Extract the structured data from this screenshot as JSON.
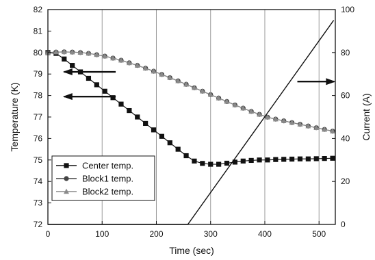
{
  "chart_data": {
    "type": "line",
    "xlabel": "Time (sec)",
    "ylabel": "Temperature (K)",
    "y2label": "Current (A)",
    "xlim": [
      0,
      530
    ],
    "ylim": [
      72,
      82
    ],
    "y2lim": [
      0,
      100
    ],
    "xticks": [
      0,
      100,
      200,
      300,
      400,
      500
    ],
    "yticks": [
      72,
      73,
      74,
      75,
      76,
      77,
      78,
      79,
      80,
      81,
      82
    ],
    "y2ticks": [
      0,
      20,
      40,
      60,
      80,
      100
    ],
    "grid_x": true,
    "grid_y": false,
    "legend_position": "bottom-left",
    "series": [
      {
        "name": "Center temp.",
        "marker": "square",
        "color": "#111111",
        "axis": "left",
        "x": [
          0,
          15,
          30,
          45,
          60,
          75,
          90,
          105,
          120,
          135,
          150,
          165,
          180,
          195,
          210,
          225,
          240,
          255,
          270,
          285,
          300,
          315,
          330,
          345,
          360,
          375,
          390,
          405,
          420,
          435,
          450,
          465,
          480,
          495,
          510,
          525
        ],
        "y": [
          80.0,
          79.96,
          79.7,
          79.4,
          79.1,
          78.8,
          78.5,
          78.2,
          77.9,
          77.6,
          77.3,
          77.0,
          76.7,
          76.4,
          76.1,
          75.8,
          75.5,
          75.2,
          74.95,
          74.84,
          74.8,
          74.8,
          74.85,
          74.9,
          74.95,
          74.98,
          75.0,
          75.0,
          75.02,
          75.03,
          75.04,
          75.05,
          75.05,
          75.06,
          75.07,
          75.08
        ]
      },
      {
        "name": "Block1 temp.",
        "marker": "circle",
        "color": "#444444",
        "axis": "left",
        "x": [
          0,
          15,
          30,
          45,
          60,
          75,
          90,
          105,
          120,
          135,
          150,
          165,
          180,
          195,
          210,
          225,
          240,
          255,
          270,
          285,
          300,
          315,
          330,
          345,
          360,
          375,
          390,
          405,
          420,
          435,
          450,
          465,
          480,
          495,
          510,
          525
        ],
        "y": [
          80.0,
          80.02,
          80.03,
          80.02,
          80.0,
          79.96,
          79.9,
          79.83,
          79.74,
          79.64,
          79.52,
          79.4,
          79.27,
          79.13,
          78.98,
          78.83,
          78.68,
          78.52,
          78.36,
          78.2,
          78.04,
          77.88,
          77.72,
          77.56,
          77.41,
          77.26,
          77.12,
          76.99,
          76.9,
          76.82,
          76.74,
          76.66,
          76.58,
          76.5,
          76.42,
          76.34
        ]
      },
      {
        "name": "Block2 temp.",
        "marker": "triangle",
        "color": "#8a8a8a",
        "axis": "left",
        "x": [
          0,
          15,
          30,
          45,
          60,
          75,
          90,
          105,
          120,
          135,
          150,
          165,
          180,
          195,
          210,
          225,
          240,
          255,
          270,
          285,
          300,
          315,
          330,
          345,
          360,
          375,
          390,
          405,
          420,
          435,
          450,
          465,
          480,
          495,
          510,
          525
        ],
        "y": [
          80.0,
          80.02,
          80.03,
          80.02,
          80.0,
          79.96,
          79.9,
          79.83,
          79.74,
          79.64,
          79.52,
          79.4,
          79.27,
          79.13,
          78.98,
          78.83,
          78.68,
          78.52,
          78.36,
          78.2,
          78.04,
          77.88,
          77.72,
          77.56,
          77.41,
          77.26,
          77.12,
          76.99,
          76.9,
          76.82,
          76.74,
          76.66,
          76.58,
          76.5,
          76.42,
          76.34
        ]
      },
      {
        "name": "",
        "marker": "none",
        "color": "#111111",
        "axis": "right",
        "x": [
          0,
          258,
          527
        ],
        "y": [
          0,
          0,
          95
        ]
      }
    ],
    "annotations": [
      {
        "type": "arrow",
        "direction": "left",
        "x_from": 125,
        "x_to": 30,
        "y": 79.1,
        "axis": "left"
      },
      {
        "type": "arrow",
        "direction": "left",
        "x_from": 125,
        "x_to": 30,
        "y": 77.95,
        "axis": "left"
      },
      {
        "type": "arrow",
        "direction": "right",
        "x_from": 460,
        "x_to": 528,
        "y": 66.5,
        "axis": "right"
      }
    ]
  }
}
